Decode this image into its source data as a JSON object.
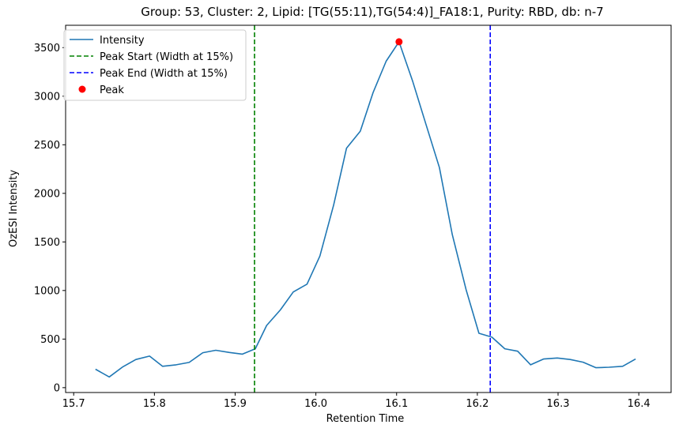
{
  "chart_data": {
    "type": "line",
    "title": "Group: 53, Cluster: 2, Lipid: [TG(55:11),TG(54:4)]_FA18:1, Purity: RBD, db: n-7",
    "xlabel": "Retention Time",
    "ylabel": "OzESI Intensity",
    "xlim": [
      15.69,
      16.44
    ],
    "ylim": [
      -50,
      3730
    ],
    "xticks": [
      15.7,
      15.8,
      15.9,
      16.0,
      16.1,
      16.2,
      16.3,
      16.4
    ],
    "yticks": [
      0,
      500,
      1000,
      1500,
      2000,
      2500,
      3000,
      3500
    ],
    "grid": false,
    "legend_position": "upper left",
    "series": [
      {
        "name": "Intensity",
        "color": "#1f77b4",
        "style": "solid",
        "x": [
          15.727,
          15.744,
          15.761,
          15.777,
          15.794,
          15.81,
          15.827,
          15.843,
          15.86,
          15.876,
          15.893,
          15.909,
          15.925,
          15.939,
          15.956,
          15.972,
          15.989,
          16.005,
          16.022,
          16.038,
          16.055,
          16.071,
          16.087,
          16.103,
          16.12,
          16.136,
          16.153,
          16.169,
          16.186,
          16.202,
          16.218,
          16.234,
          16.25,
          16.266,
          16.282,
          16.299,
          16.315,
          16.331,
          16.347,
          16.363,
          16.38,
          16.396
        ],
        "y": [
          190,
          110,
          215,
          290,
          325,
          220,
          235,
          260,
          360,
          385,
          362,
          345,
          400,
          640,
          800,
          985,
          1065,
          1355,
          1880,
          2465,
          2640,
          3040,
          3360,
          3560,
          3150,
          2720,
          2265,
          1575,
          1010,
          560,
          520,
          400,
          375,
          235,
          295,
          305,
          290,
          262,
          205,
          210,
          220,
          295
        ]
      },
      {
        "name": "Peak Start (Width at 15%)",
        "color": "#008000",
        "style": "dashed",
        "x": 15.924
      },
      {
        "name": "Peak End (Width at 15%)",
        "color": "#0000ff",
        "style": "dashed",
        "x": 16.216
      },
      {
        "name": "Peak",
        "color": "#ff0000",
        "style": "marker",
        "x": 16.103,
        "y": 3560
      }
    ]
  }
}
